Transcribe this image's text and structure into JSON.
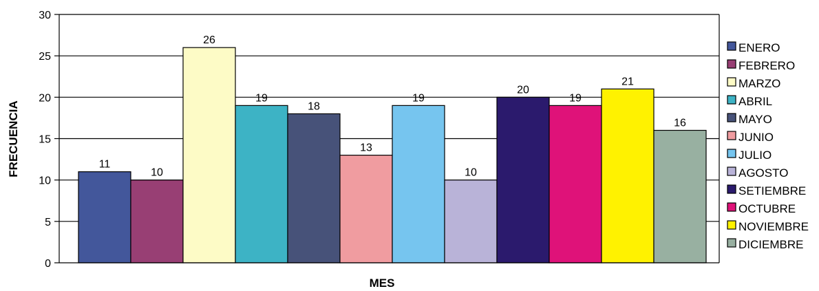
{
  "chart_data": {
    "type": "bar",
    "categories": [
      "ENERO",
      "FEBRERO",
      "MARZO",
      "ABRIL",
      "MAYO",
      "JUNIO",
      "JULIO",
      "AGOSTO",
      "SETIEMBRE",
      "OCTUBRE",
      "NOVIEMBRE",
      "DICIEMBRE"
    ],
    "values": [
      11,
      10,
      26,
      19,
      18,
      13,
      19,
      10,
      20,
      19,
      21,
      16
    ],
    "data_labels": [
      "11",
      "10",
      "26",
      "19",
      "18",
      "13",
      "19",
      "10",
      "20",
      "19",
      "21",
      "16"
    ],
    "colors": [
      "#43579b",
      "#983f74",
      "#fdfbc6",
      "#3db3c5",
      "#475279",
      "#f09ca0",
      "#76c5ef",
      "#b9b3d8",
      "#2b1a6d",
      "#df1279",
      "#fff200",
      "#98b0a1"
    ],
    "title": "",
    "xlabel": "MES",
    "ylabel": "FRECUENCIA",
    "ylim": [
      0,
      30
    ],
    "yticks": [
      0,
      5,
      10,
      15,
      20,
      25,
      30
    ],
    "ytick_labels": [
      "0",
      "5",
      "10",
      "15",
      "20",
      "25",
      "30"
    ],
    "grid": true,
    "legend_position": "right"
  }
}
